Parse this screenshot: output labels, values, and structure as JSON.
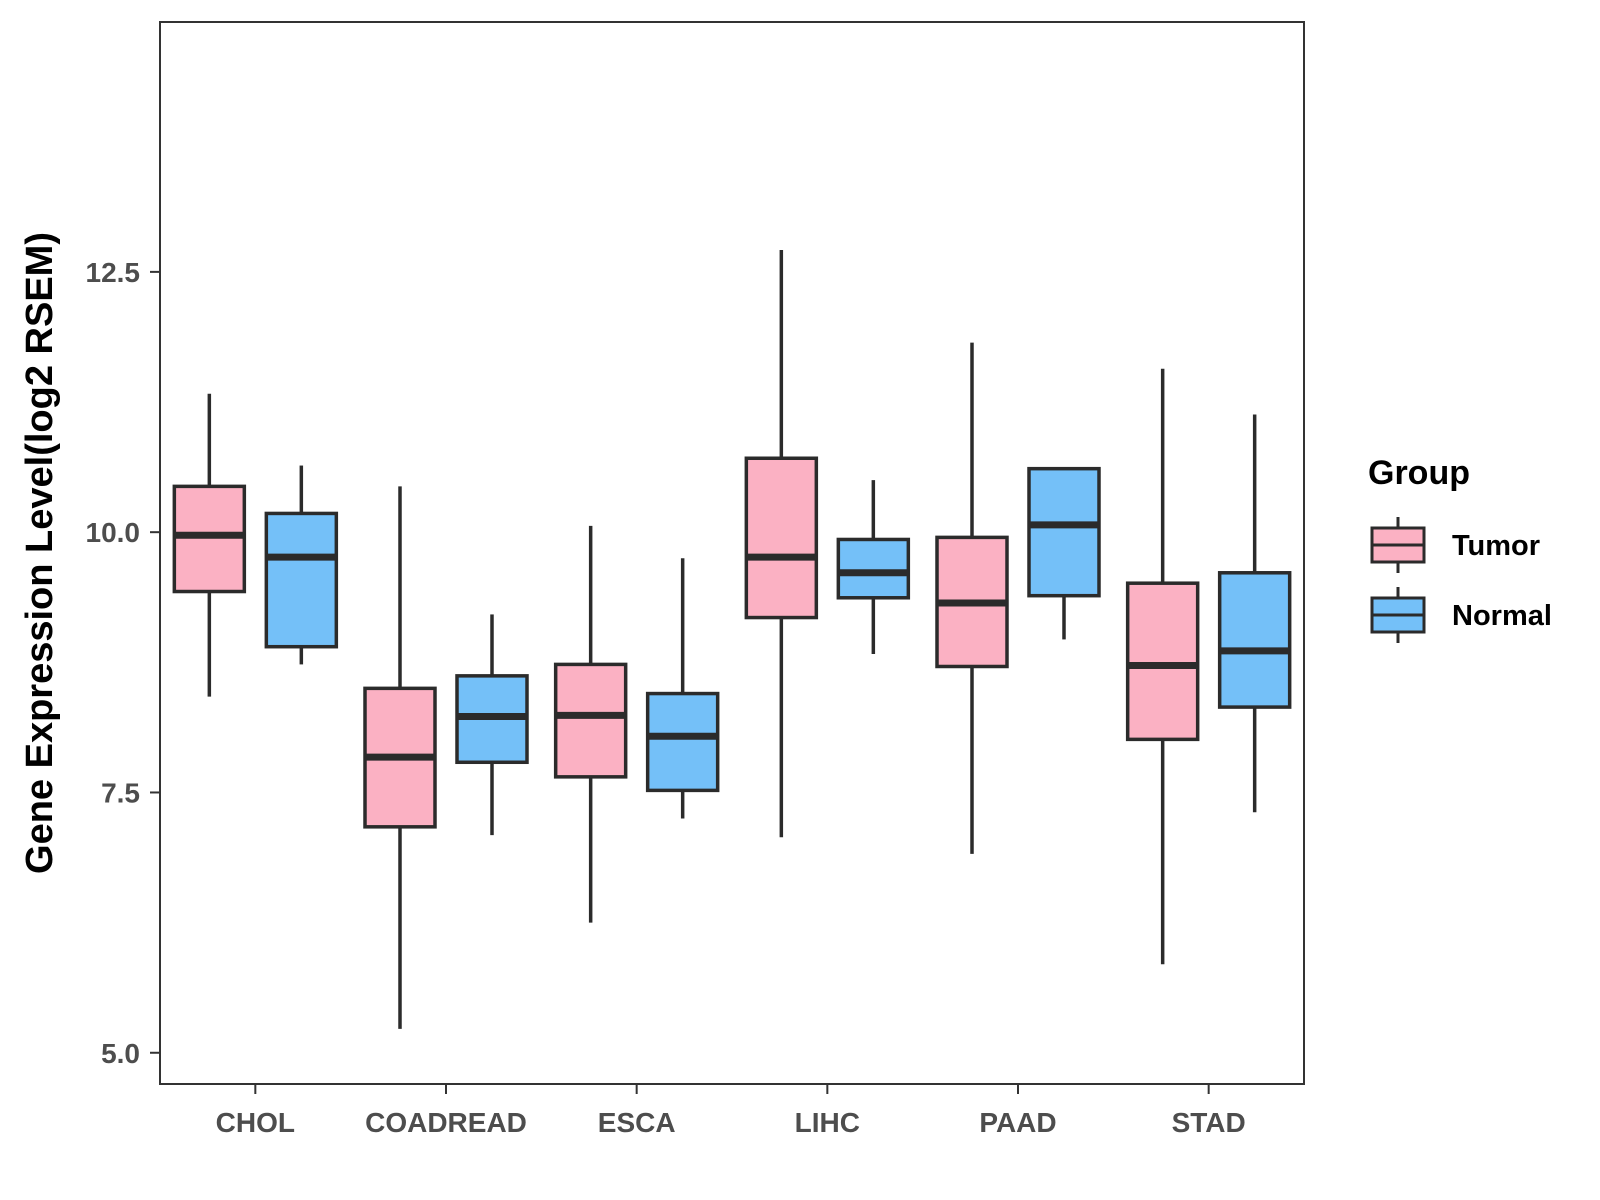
{
  "chart_data": {
    "type": "boxplot",
    "title": "",
    "xlabel": "",
    "ylabel": "Gene Expression Level(log2 RSEM)",
    "ylim": [
      4.7,
      14.9
    ],
    "yticks": [
      5.0,
      7.5,
      10.0,
      12.5
    ],
    "ytick_labels": [
      "5.0",
      "7.5",
      "10.0",
      "12.5"
    ],
    "categories": [
      "CHOL",
      "COADREAD",
      "ESCA",
      "LIHC",
      "PAAD",
      "STAD"
    ],
    "legend": {
      "title": "Group",
      "position": "right"
    },
    "series": [
      {
        "name": "Tumor",
        "color": "#FBB1C3",
        "boxes": [
          {
            "min": 8.42,
            "q1": 9.43,
            "median": 9.97,
            "q3": 10.44,
            "max": 11.33
          },
          {
            "min": 5.23,
            "q1": 7.17,
            "median": 7.84,
            "q3": 8.5,
            "max": 10.44
          },
          {
            "min": 6.25,
            "q1": 7.65,
            "median": 8.24,
            "q3": 8.73,
            "max": 10.06
          },
          {
            "min": 7.07,
            "q1": 9.18,
            "median": 9.76,
            "q3": 10.71,
            "max": 12.71
          },
          {
            "min": 6.91,
            "q1": 8.71,
            "median": 9.32,
            "q3": 9.95,
            "max": 11.82
          },
          {
            "min": 5.85,
            "q1": 8.01,
            "median": 8.72,
            "q3": 9.51,
            "max": 11.57
          }
        ]
      },
      {
        "name": "Normal",
        "color": "#74C0F8",
        "boxes": [
          {
            "min": 8.73,
            "q1": 8.9,
            "median": 9.76,
            "q3": 10.18,
            "max": 10.64
          },
          {
            "min": 7.09,
            "q1": 7.79,
            "median": 8.23,
            "q3": 8.62,
            "max": 9.21
          },
          {
            "min": 7.25,
            "q1": 7.52,
            "median": 8.04,
            "q3": 8.45,
            "max": 9.75
          },
          {
            "min": 8.83,
            "q1": 9.37,
            "median": 9.61,
            "q3": 9.93,
            "max": 10.5
          },
          {
            "min": 8.97,
            "q1": 9.39,
            "median": 10.07,
            "q3": 10.61,
            "max": 10.61
          },
          {
            "min": 7.31,
            "q1": 8.32,
            "median": 8.86,
            "q3": 9.61,
            "max": 11.13
          }
        ]
      }
    ]
  }
}
